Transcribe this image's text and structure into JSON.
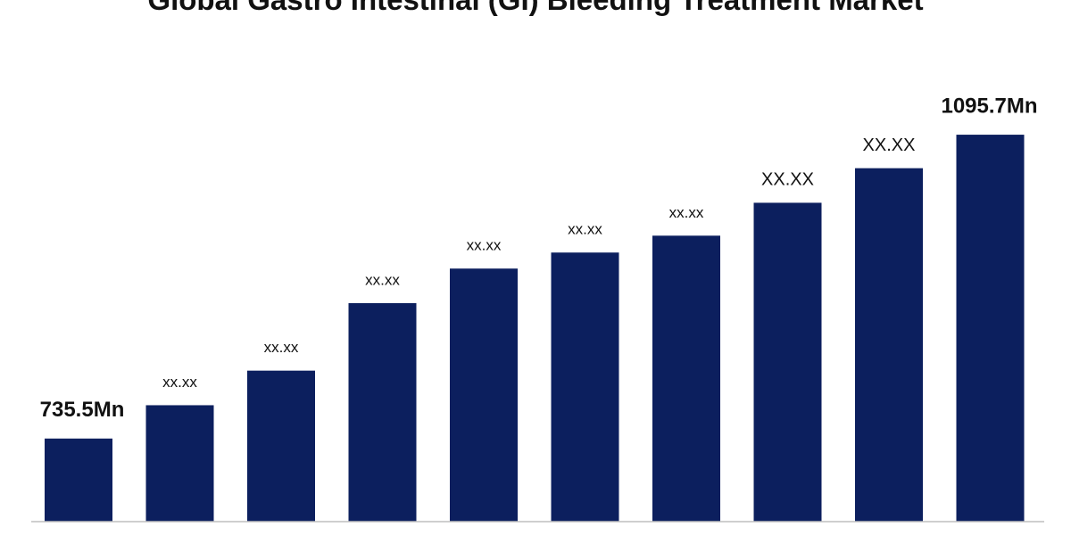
{
  "chart_data": {
    "type": "bar",
    "title": "Global Gastro Intestinal (GI) Bleeding Treatment Market",
    "values": [
      735.5,
      775,
      816,
      896,
      937,
      956,
      976,
      1015,
      1056,
      1095.7
    ],
    "value_labels": [
      "735.5Mn",
      "xx.xx",
      "xx.xx",
      "xx.xx",
      "xx.xx",
      "xx.xx",
      "xx.xx",
      "XX.XX",
      "XX.XX",
      "1095.7Mn"
    ],
    "color": "#0c1f5e",
    "ylim": [
      637,
      1100
    ]
  }
}
